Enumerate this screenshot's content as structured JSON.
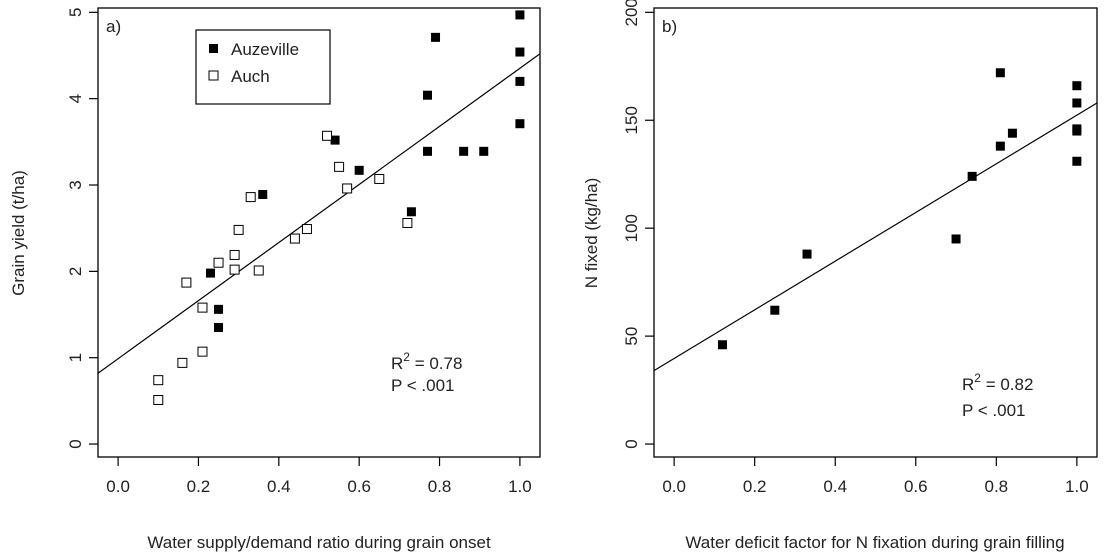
{
  "chart_data": [
    {
      "type": "scatter",
      "panel_label": "a)",
      "xlabel": "Water supply/demand ratio during grain onset",
      "ylabel": "Grain yield (t/ha)",
      "xlim": [
        -0.05,
        1.05
      ],
      "ylim": [
        -0.15,
        5.05
      ],
      "xticks": [
        "0.0",
        "0.2",
        "0.4",
        "0.6",
        "0.8",
        "1.0"
      ],
      "yticks": [
        "0",
        "1",
        "2",
        "3",
        "4",
        "5"
      ],
      "legend_position": "top-left",
      "series": [
        {
          "name": "Auzeville",
          "marker": "filled-square",
          "x": [
            0.23,
            0.25,
            0.25,
            0.36,
            0.54,
            0.6,
            0.73,
            0.77,
            0.77,
            0.79,
            0.86,
            0.91,
            1.0,
            1.0,
            1.0,
            1.0
          ],
          "y": [
            1.98,
            1.56,
            1.35,
            2.89,
            3.52,
            3.17,
            2.69,
            3.39,
            4.04,
            4.71,
            3.39,
            3.39,
            4.97,
            4.54,
            4.2,
            3.71
          ]
        },
        {
          "name": "Auch",
          "marker": "open-square",
          "x": [
            0.1,
            0.1,
            0.16,
            0.17,
            0.21,
            0.21,
            0.25,
            0.29,
            0.29,
            0.3,
            0.33,
            0.35,
            0.44,
            0.47,
            0.52,
            0.55,
            0.57,
            0.65,
            0.72
          ],
          "y": [
            0.74,
            0.51,
            0.94,
            1.87,
            1.58,
            1.07,
            2.1,
            2.19,
            2.02,
            2.48,
            2.86,
            2.01,
            2.38,
            2.49,
            3.57,
            3.21,
            2.96,
            3.07,
            2.56
          ]
        }
      ],
      "fit_line": {
        "x0": -0.05,
        "y0": 0.82,
        "x1": 1.05,
        "y1": 4.52
      },
      "r2_label": "R",
      "r2_exponent": "2",
      "r2_value": " = 0.78",
      "p_label": "P < .001"
    },
    {
      "type": "scatter",
      "panel_label": "b)",
      "xlabel": "Water deficit factor for N fixation during grain filling",
      "ylabel": "N fixed (kg/ha)",
      "xlim": [
        -0.05,
        1.05
      ],
      "ylim": [
        -6,
        202
      ],
      "xticks": [
        "0.0",
        "0.2",
        "0.4",
        "0.6",
        "0.8",
        "1.0"
      ],
      "yticks": [
        "0",
        "50",
        "100",
        "150",
        "200"
      ],
      "series": [
        {
          "marker": "filled-square",
          "x": [
            0.12,
            0.25,
            0.33,
            0.7,
            0.74,
            0.81,
            0.81,
            0.84,
            1.0,
            1.0,
            1.0,
            1.0,
            1.0
          ],
          "y": [
            46,
            62,
            88,
            95,
            124,
            172,
            138,
            144,
            166,
            158,
            146,
            145,
            131
          ]
        }
      ],
      "fit_line": {
        "x0": -0.05,
        "y0": 34,
        "x1": 1.05,
        "y1": 158
      },
      "r2_label": "R",
      "r2_exponent": "2",
      "r2_value": " = 0.82",
      "p_label": "P < .001"
    }
  ]
}
